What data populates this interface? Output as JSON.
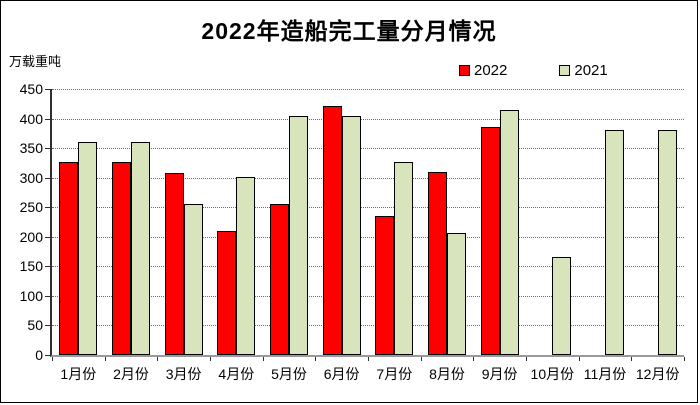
{
  "chart_data": {
    "type": "bar",
    "title": "2022年造船完工量分月情况",
    "ylabel": "万载重吨",
    "xlabel": "",
    "categories": [
      "1月份",
      "2月份",
      "3月份",
      "4月份",
      "5月份",
      "6月份",
      "7月份",
      "8月份",
      "9月份",
      "10月份",
      "11月份",
      "12月份"
    ],
    "series": [
      {
        "name": "2022",
        "color": "#FF0000",
        "values": [
          327,
          327,
          308,
          210,
          256,
          421,
          235,
          310,
          386,
          null,
          null,
          null
        ]
      },
      {
        "name": "2021",
        "color": "#D8E4BC",
        "values": [
          361,
          361,
          255,
          302,
          404,
          405,
          327,
          207,
          414,
          166,
          381,
          381
        ]
      }
    ],
    "ylim": [
      0,
      450
    ],
    "yticks": [
      0,
      50,
      100,
      150,
      200,
      250,
      300,
      350,
      400,
      450
    ],
    "grid": true,
    "gridline_style": "dotted",
    "legend_position": "top-right",
    "bar_border_color": "#000000",
    "background_color": "#FFFFFF"
  }
}
